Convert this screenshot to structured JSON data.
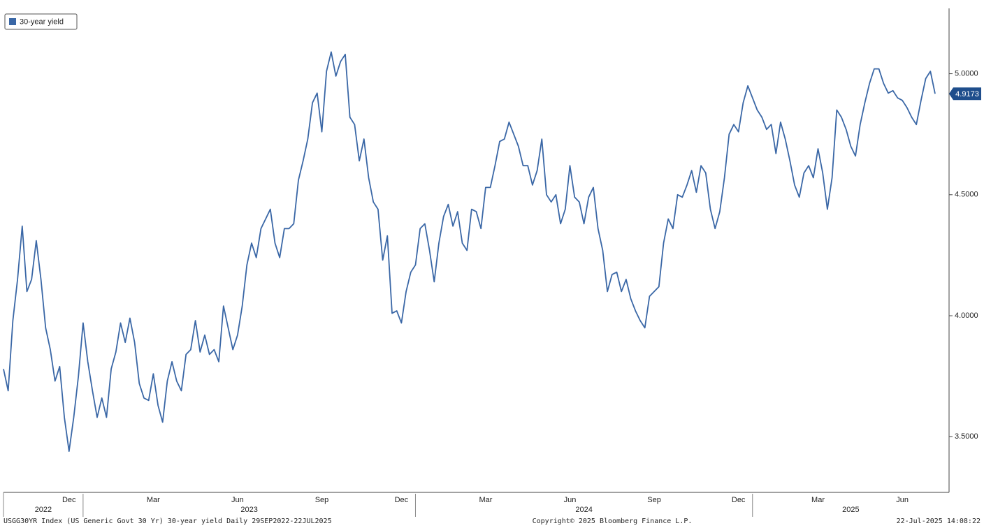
{
  "chart_data": {
    "type": "line",
    "categories": [
      null,
      null,
      null,
      null,
      null,
      null,
      null,
      null,
      null,
      null,
      null,
      null,
      null,
      null,
      "Dec",
      null,
      null,
      null,
      null,
      null,
      null,
      null,
      null,
      null,
      null,
      null,
      null,
      null,
      null,
      null,
      null,
      null,
      "Mar",
      null,
      null,
      null,
      null,
      null,
      null,
      null,
      null,
      null,
      null,
      null,
      null,
      null,
      null,
      null,
      null,
      null,
      "Jun",
      null,
      null,
      null,
      null,
      null,
      null,
      null,
      null,
      null,
      null,
      null,
      null,
      null,
      null,
      null,
      null,
      null,
      "Sep",
      null,
      null,
      null,
      null,
      null,
      null,
      null,
      null,
      null,
      null,
      null,
      null,
      null,
      null,
      null,
      null,
      "Dec",
      null,
      null,
      null,
      null,
      null,
      null,
      null,
      null,
      null,
      null,
      null,
      null,
      null,
      null,
      null,
      null,
      null,
      "Mar",
      null,
      null,
      null,
      null,
      null,
      null,
      null,
      null,
      null,
      null,
      null,
      null,
      null,
      null,
      null,
      null,
      null,
      "Jun",
      null,
      null,
      null,
      null,
      null,
      null,
      null,
      null,
      null,
      null,
      null,
      null,
      null,
      null,
      null,
      null,
      null,
      "Sep",
      null,
      null,
      null,
      null,
      null,
      null,
      null,
      null,
      null,
      null,
      null,
      null,
      null,
      null,
      null,
      null,
      null,
      "Dec",
      null,
      null,
      null,
      null,
      null,
      null,
      null,
      null,
      null,
      null,
      null,
      null,
      null,
      null,
      null,
      null,
      "Mar",
      null,
      null,
      null,
      null,
      null,
      null,
      null,
      null,
      null,
      null,
      null,
      null,
      null,
      null,
      null,
      null,
      null,
      "Jun",
      null,
      null,
      null,
      null,
      null,
      null,
      null
    ],
    "year_labels": [
      "2022",
      "2023",
      "2024",
      "2025"
    ],
    "series": [
      {
        "name": "30-year yield",
        "color": "#3a67a6",
        "values": [
          3.78,
          3.69,
          3.98,
          4.15,
          4.37,
          4.1,
          4.15,
          4.31,
          4.15,
          3.95,
          3.86,
          3.73,
          3.79,
          3.58,
          3.44,
          3.58,
          3.75,
          3.97,
          3.81,
          3.69,
          3.58,
          3.66,
          3.58,
          3.78,
          3.85,
          3.97,
          3.89,
          3.99,
          3.89,
          3.72,
          3.66,
          3.65,
          3.76,
          3.63,
          3.56,
          3.73,
          3.81,
          3.73,
          3.69,
          3.84,
          3.86,
          3.98,
          3.85,
          3.92,
          3.84,
          3.86,
          3.81,
          4.04,
          3.95,
          3.86,
          3.92,
          4.04,
          4.21,
          4.3,
          4.24,
          4.36,
          4.4,
          4.44,
          4.3,
          4.24,
          4.36,
          4.36,
          4.38,
          4.56,
          4.64,
          4.73,
          4.88,
          4.92,
          4.76,
          5.01,
          5.09,
          4.99,
          5.05,
          5.08,
          4.82,
          4.79,
          4.64,
          4.73,
          4.57,
          4.47,
          4.44,
          4.23,
          4.33,
          4.01,
          4.02,
          3.97,
          4.1,
          4.18,
          4.21,
          4.36,
          4.38,
          4.27,
          4.14,
          4.3,
          4.41,
          4.46,
          4.37,
          4.43,
          4.3,
          4.27,
          4.44,
          4.43,
          4.36,
          4.53,
          4.53,
          4.62,
          4.72,
          4.73,
          4.8,
          4.75,
          4.7,
          4.62,
          4.62,
          4.54,
          4.6,
          4.73,
          4.5,
          4.47,
          4.5,
          4.38,
          4.44,
          4.62,
          4.49,
          4.47,
          4.38,
          4.49,
          4.53,
          4.36,
          4.27,
          4.1,
          4.17,
          4.18,
          4.1,
          4.15,
          4.07,
          4.02,
          3.98,
          3.95,
          4.08,
          4.1,
          4.12,
          4.3,
          4.4,
          4.36,
          4.5,
          4.49,
          4.54,
          4.6,
          4.51,
          4.62,
          4.59,
          4.44,
          4.36,
          4.43,
          4.57,
          4.75,
          4.79,
          4.76,
          4.88,
          4.95,
          4.9,
          4.85,
          4.82,
          4.77,
          4.79,
          4.67,
          4.8,
          4.73,
          4.64,
          4.54,
          4.49,
          4.59,
          4.62,
          4.57,
          4.69,
          4.59,
          4.44,
          4.57,
          4.85,
          4.82,
          4.77,
          4.7,
          4.66,
          4.79,
          4.88,
          4.96,
          5.02,
          5.02,
          4.96,
          4.92,
          4.93,
          4.9,
          4.89,
          4.86,
          4.82,
          4.79,
          4.89,
          4.98,
          5.01,
          4.9173
        ]
      }
    ],
    "ylim": [
      3.27,
      5.27
    ],
    "yticks": [
      {
        "value": 3.5,
        "label": "3.5000"
      },
      {
        "value": 4.0,
        "label": "4.0000"
      },
      {
        "value": 4.5,
        "label": "4.5000"
      },
      {
        "value": 5.0,
        "label": "5.0000"
      }
    ],
    "legend": "top-left",
    "footer_left": "USGG30YR Index (US Generic Govt 30 Yr) 30-year yield  Daily 29SEP2022-22JUL2025",
    "footer_center": "Copyright© 2025 Bloomberg Finance L.P.",
    "footer_right": "22-Jul-2025 14:08:22"
  }
}
